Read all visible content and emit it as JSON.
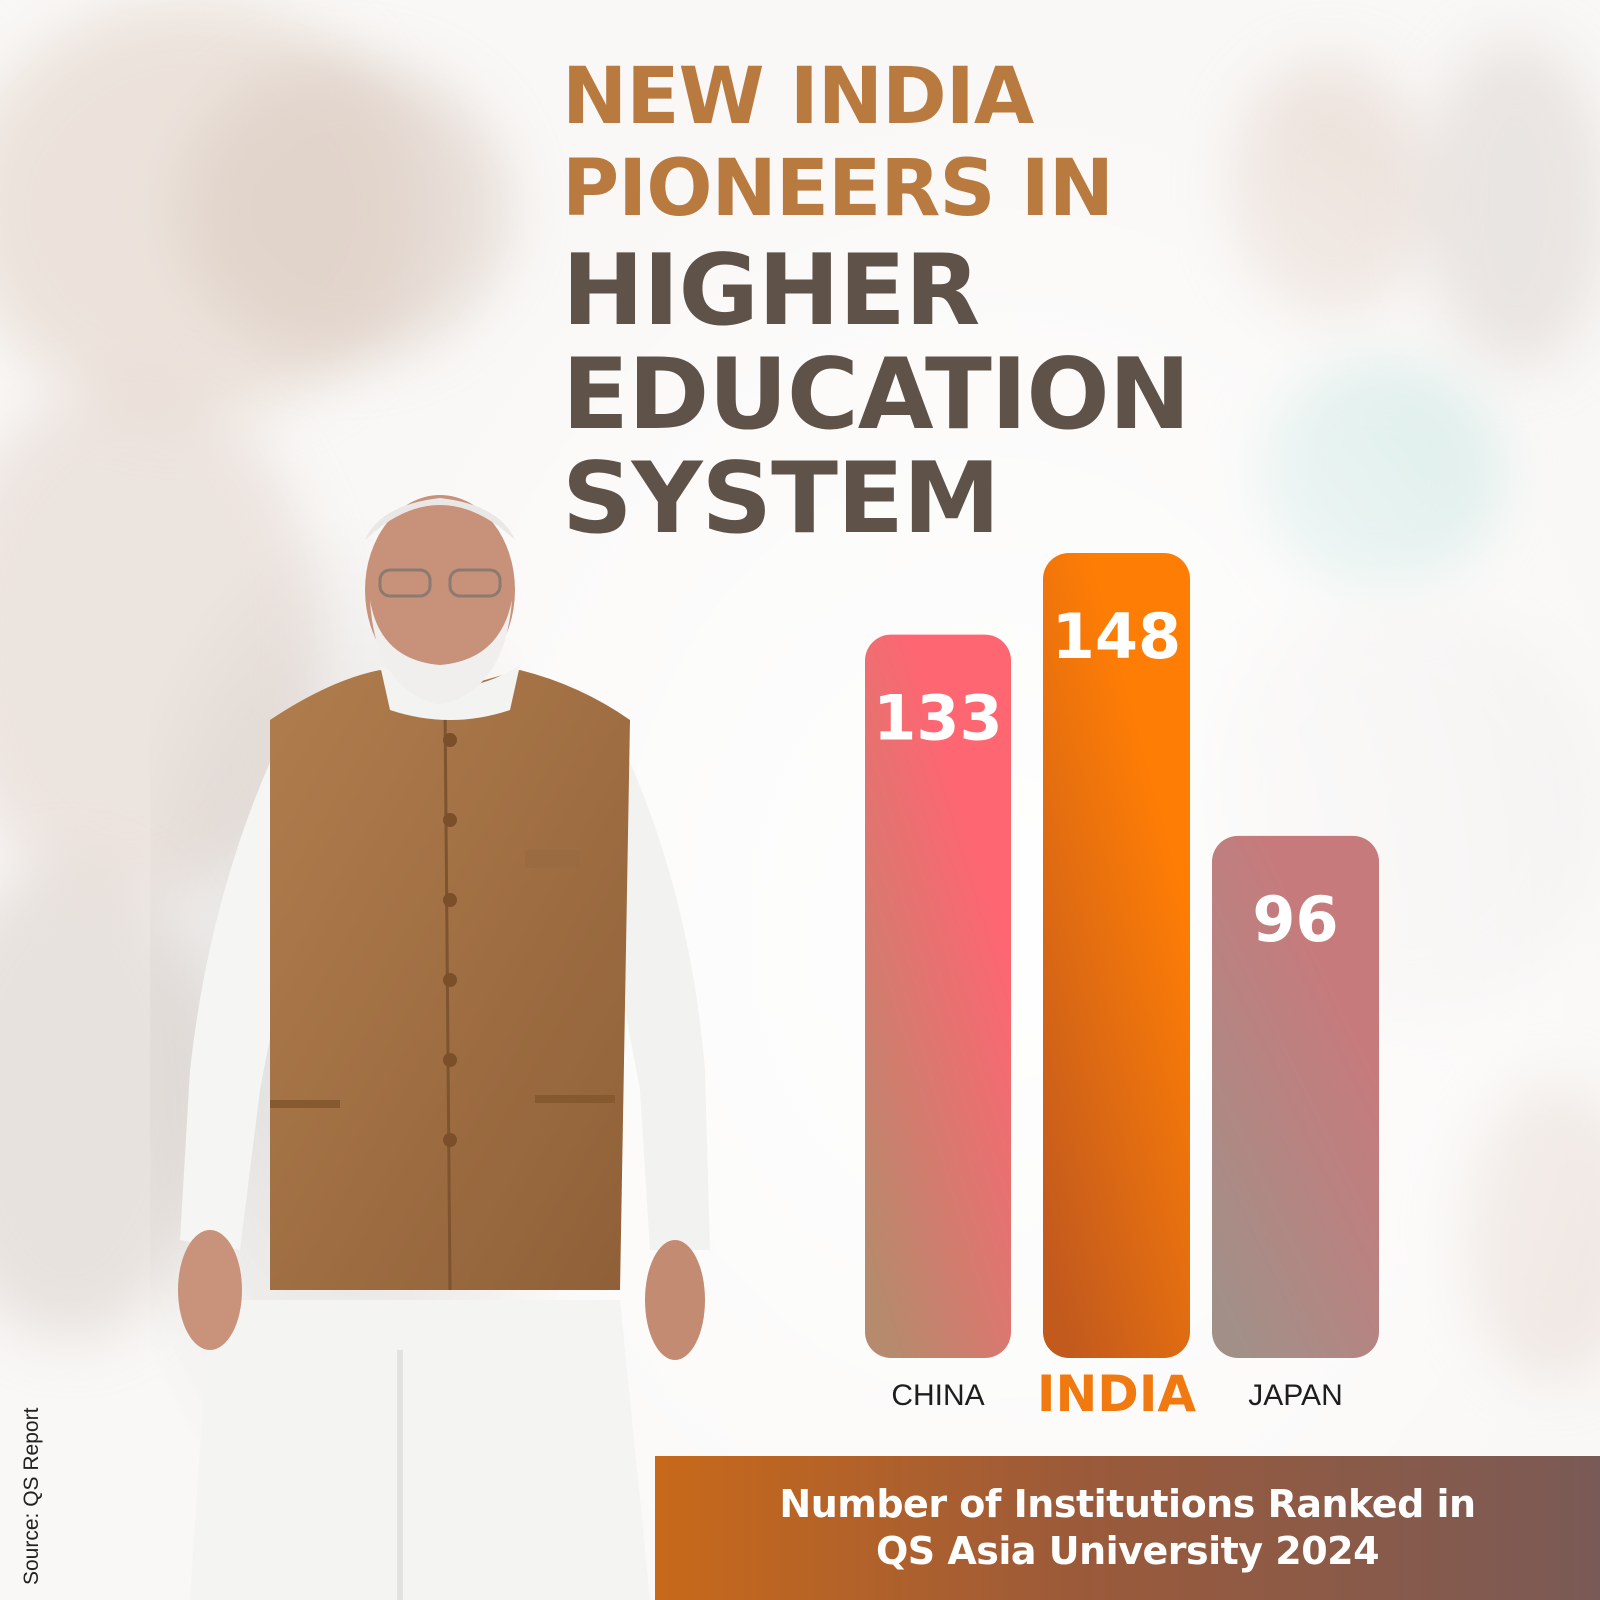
{
  "headline": {
    "line1": "NEW INDIA",
    "line2": "PIONEERS IN",
    "line3": "HIGHER",
    "line4": "EDUCATION",
    "line5": "SYSTEM"
  },
  "caption": {
    "line1": "Number of Institutions Ranked in",
    "line2": "QS Asia University 2024"
  },
  "source": "Source:  QS Report",
  "colors": {
    "headline_accent": "#b87a3e",
    "headline_dark": "#5e5249",
    "india_orange": "#f07a10"
  },
  "chart_data": {
    "type": "bar",
    "categories": [
      "CHINA",
      "INDIA",
      "JAPAN"
    ],
    "values": [
      133,
      148,
      96
    ],
    "highlight": "INDIA",
    "title": "",
    "xlabel": "",
    "ylabel": "",
    "ylim": [
      0,
      148
    ],
    "grid": false,
    "bar_colors": [
      [
        "#fe6672",
        "#b68a6c"
      ],
      [
        "#fe7d05",
        "#c25a1e"
      ],
      [
        "#c77a7c",
        "#a29088"
      ]
    ]
  }
}
